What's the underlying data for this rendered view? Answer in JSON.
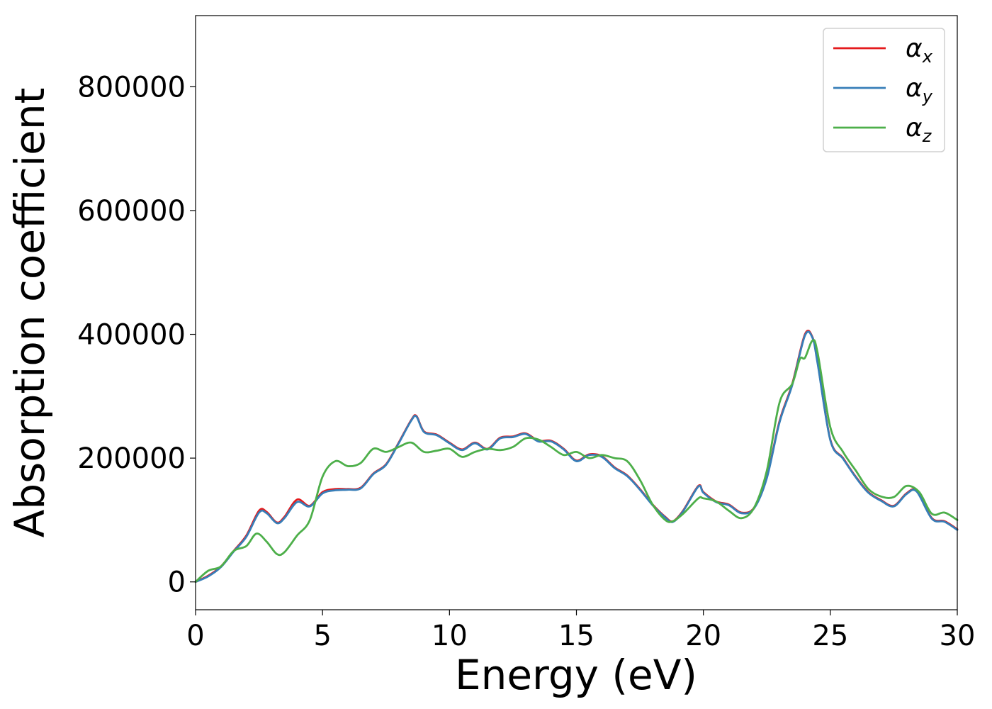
{
  "chart_data": {
    "type": "line",
    "xlabel": "Energy (eV)",
    "ylabel": "Absorption coefficient",
    "xlim": [
      0,
      30
    ],
    "ylim": [
      -45000,
      915000
    ],
    "x_ticks": [
      0,
      5,
      10,
      15,
      20,
      25,
      30
    ],
    "y_ticks": [
      0,
      200000,
      400000,
      600000,
      800000
    ],
    "x_tick_labels": [
      "0",
      "5",
      "10",
      "15",
      "20",
      "25",
      "30"
    ],
    "y_tick_labels": [
      "0",
      "200000",
      "400000",
      "600000",
      "800000"
    ],
    "grid": false,
    "legend_position": "top-right",
    "series": [
      {
        "name": "α_x",
        "label_main": "α",
        "label_sub": "x",
        "color": "#e41a1c",
        "x": [
          0,
          0.5,
          1,
          1.5,
          2,
          2.5,
          2.8,
          3.2,
          3.5,
          4,
          4.5,
          5,
          5.5,
          6,
          6.5,
          7,
          7.5,
          8,
          8.5,
          8.7,
          9,
          9.5,
          10,
          10.5,
          11,
          11.5,
          12,
          12.5,
          13,
          13.5,
          14,
          14.5,
          15,
          15.5,
          16,
          16.5,
          17,
          17.5,
          18,
          18.5,
          18.8,
          19.2,
          19.8,
          20,
          20.5,
          21,
          21.5,
          22,
          22.5,
          23,
          23.5,
          24,
          24.3,
          24.5,
          25,
          25.5,
          26,
          26.5,
          27,
          27.5,
          28,
          28.4,
          29,
          29.5,
          30
        ],
        "y": [
          0,
          10000,
          25000,
          50000,
          75000,
          115000,
          113000,
          96000,
          105000,
          133000,
          123000,
          145000,
          150000,
          150000,
          152000,
          175000,
          190000,
          225000,
          262000,
          268000,
          243000,
          238000,
          225000,
          214000,
          225000,
          215000,
          233000,
          235000,
          240000,
          228000,
          228000,
          215000,
          196000,
          206000,
          203000,
          185000,
          172000,
          150000,
          125000,
          105000,
          98000,
          115000,
          155000,
          145000,
          130000,
          125000,
          112000,
          120000,
          170000,
          260000,
          320000,
          400000,
          395000,
          355000,
          230000,
          200000,
          170000,
          145000,
          132000,
          123000,
          143000,
          147000,
          103000,
          98000,
          85000
        ]
      },
      {
        "name": "α_y",
        "label_main": "α",
        "label_sub": "y",
        "color": "#377eb8",
        "x": [
          0,
          0.5,
          1,
          1.5,
          2,
          2.5,
          2.8,
          3.2,
          3.5,
          4,
          4.5,
          5,
          5.5,
          6,
          6.5,
          7,
          7.5,
          8,
          8.5,
          8.7,
          9,
          9.5,
          10,
          10.5,
          11,
          11.5,
          12,
          12.5,
          13,
          13.5,
          14,
          14.5,
          15,
          15.5,
          16,
          16.5,
          17,
          17.5,
          18,
          18.5,
          18.8,
          19.2,
          19.8,
          20,
          20.5,
          21,
          21.5,
          22,
          22.5,
          23,
          23.5,
          24,
          24.3,
          24.5,
          25,
          25.5,
          26,
          26.5,
          27,
          27.5,
          28,
          28.4,
          29,
          29.5,
          30
        ],
        "y": [
          0,
          9000,
          24000,
          49000,
          73000,
          112000,
          111000,
          95000,
          103000,
          129000,
          122000,
          143000,
          148000,
          149000,
          151000,
          174000,
          189000,
          224000,
          261000,
          267000,
          242000,
          237000,
          224000,
          213000,
          224000,
          214000,
          232000,
          234000,
          239000,
          227000,
          227000,
          214000,
          195000,
          205000,
          202000,
          184000,
          171000,
          149000,
          124000,
          104000,
          97000,
          114000,
          154000,
          144000,
          129000,
          124000,
          111000,
          119000,
          168000,
          258000,
          318000,
          398000,
          394000,
          353000,
          229000,
          199000,
          169000,
          144000,
          131000,
          122000,
          142000,
          146000,
          102000,
          97000,
          84000
        ]
      },
      {
        "name": "α_z",
        "label_main": "α",
        "label_sub": "z",
        "color": "#4daf4a",
        "x": [
          0,
          0.5,
          1,
          1.5,
          2,
          2.4,
          2.8,
          3.2,
          3.5,
          4,
          4.5,
          5,
          5.5,
          6,
          6.5,
          7,
          7.5,
          8,
          8.5,
          9,
          9.5,
          10,
          10.5,
          11,
          11.5,
          12,
          12.5,
          13,
          13.5,
          14,
          14.5,
          15,
          15.5,
          16,
          16.5,
          17,
          17.5,
          18,
          18.5,
          18.8,
          19.2,
          19.8,
          20,
          20.5,
          21,
          21.5,
          22,
          22.5,
          23,
          23.5,
          23.8,
          24,
          24.3,
          24.5,
          25,
          25.5,
          26,
          26.5,
          27,
          27.5,
          28,
          28.5,
          29,
          29.5,
          30
        ],
        "y": [
          0,
          18000,
          25000,
          50000,
          58000,
          78000,
          65000,
          45000,
          48000,
          75000,
          100000,
          170000,
          195000,
          187000,
          192000,
          215000,
          210000,
          218000,
          225000,
          210000,
          212000,
          215000,
          202000,
          210000,
          215000,
          213000,
          218000,
          232000,
          230000,
          218000,
          205000,
          210000,
          200000,
          205000,
          200000,
          195000,
          165000,
          125000,
          100000,
          98000,
          110000,
          135000,
          135000,
          130000,
          115000,
          103000,
          120000,
          180000,
          290000,
          320000,
          360000,
          362000,
          390000,
          370000,
          250000,
          210000,
          180000,
          150000,
          138000,
          137000,
          155000,
          145000,
          110000,
          112000,
          100000
        ]
      }
    ]
  }
}
